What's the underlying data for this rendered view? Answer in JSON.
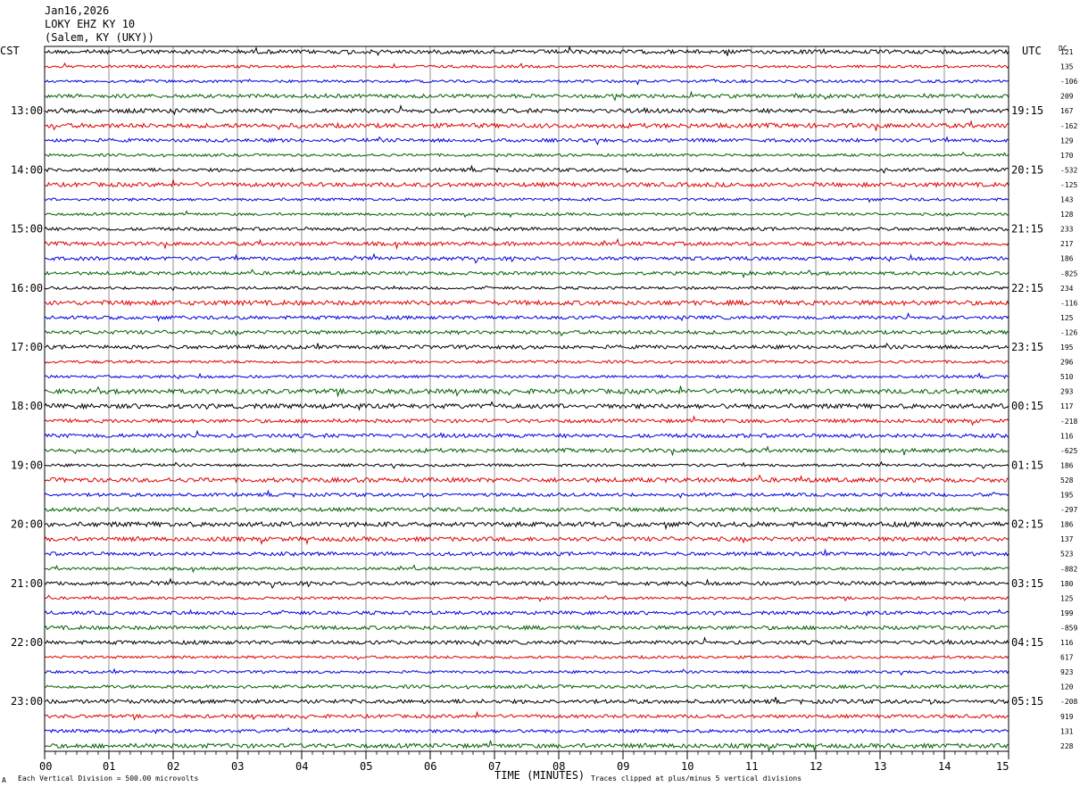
{
  "header": {
    "date": "Jan16,2026",
    "station": "LOKY EHZ KY 10",
    "location": "(Salem, KY (UKY))"
  },
  "axes": {
    "left_zone": "CST",
    "right_zone": "UTC",
    "dc_label": "DC"
  },
  "footer": {
    "scale_note": "Each Vertical Division =  500.00 microvolts",
    "xlabel": "TIME (MINUTES)",
    "clip_note": "Traces clipped at plus/minus 5 vertical divisions",
    "corner_mark": "A"
  },
  "colors": {
    "trace_cycle": [
      "#000000",
      "#e00000",
      "#0000e0",
      "#006000"
    ],
    "grid": "#777777",
    "border": "#000000"
  },
  "chart_data": {
    "type": "line",
    "title": "LOKY EHZ KY 10",
    "xlabel": "TIME (MINUTES)",
    "xlim": [
      0,
      15
    ],
    "x_ticks": [
      "00",
      "01",
      "02",
      "03",
      "04",
      "05",
      "06",
      "07",
      "08",
      "09",
      "10",
      "11",
      "12",
      "13",
      "14",
      "15"
    ],
    "trace_count": 48,
    "traces_per_hour": 4,
    "left_hour_labels": [
      "13:00",
      "14:00",
      "15:00",
      "16:00",
      "17:00",
      "18:00",
      "19:00",
      "20:00",
      "21:00",
      "22:00",
      "23:00"
    ],
    "right_hour_labels": [
      "19:15",
      "20:15",
      "21:15",
      "22:15",
      "23:15",
      "00:15",
      "01:15",
      "02:15",
      "03:15",
      "04:15",
      "05:15"
    ],
    "dc_offsets": [
      "121",
      "135",
      "-106",
      "209",
      "167",
      "-162",
      "129",
      "170",
      "-532",
      "-125",
      "143",
      "128",
      "233",
      "217",
      "186",
      "-825",
      "234",
      "-116",
      "125",
      "-126",
      "195",
      "296",
      "510",
      "293",
      "117",
      "-218",
      "116",
      "-625",
      "186",
      "528",
      "195",
      "-297",
      "186",
      "137",
      "523",
      "-882",
      "180",
      "125",
      "199",
      "-859",
      "116",
      "617",
      "923",
      "120",
      "-208",
      "919",
      "131",
      "228"
    ],
    "amplitude_unit": "500.00 microvolts per division",
    "clip_divisions": 5
  }
}
